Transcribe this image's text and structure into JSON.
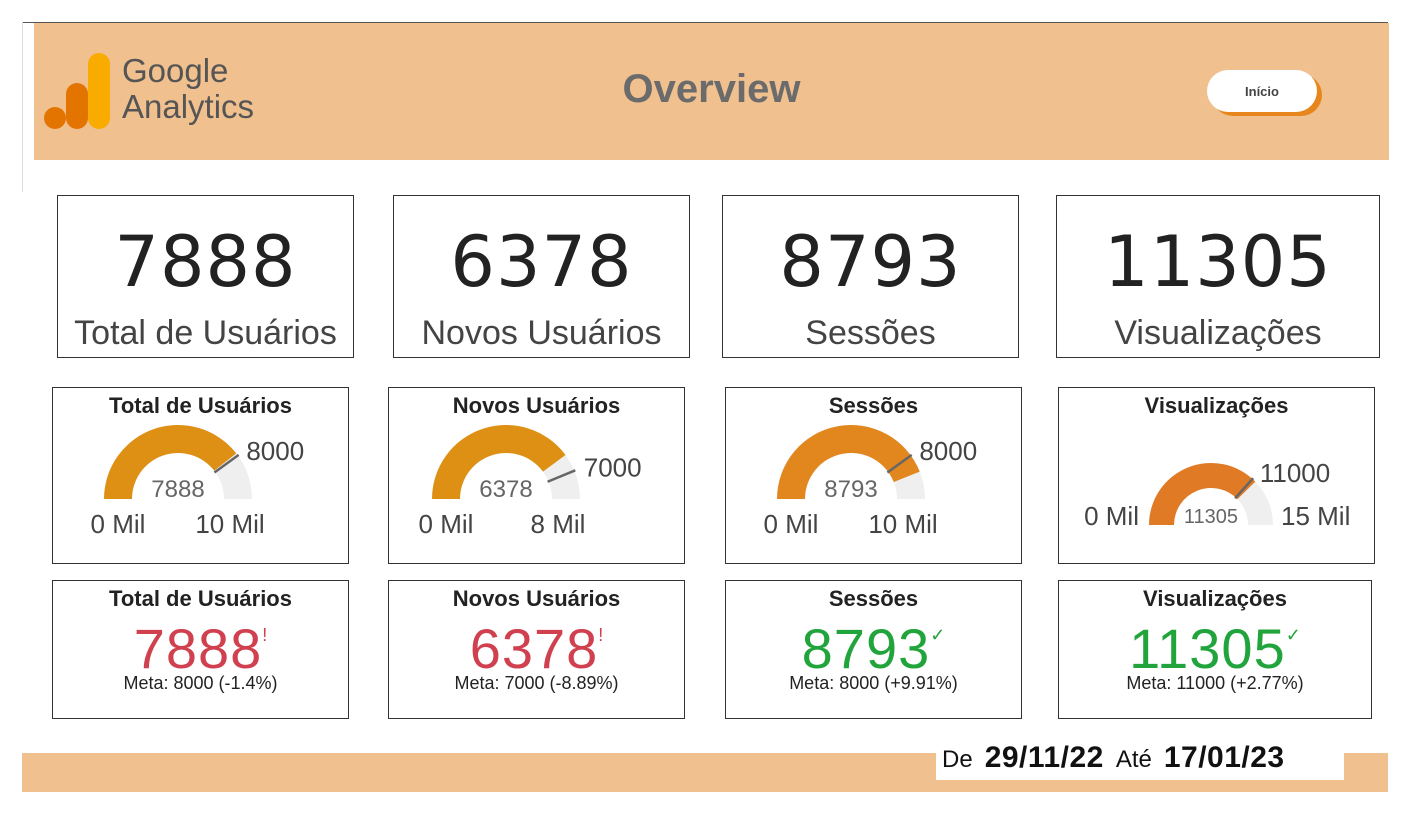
{
  "header": {
    "logo_line1": "Google",
    "logo_line2": "Analytics",
    "title": "Overview",
    "inicio_label": "Início",
    "bg_color": "#f0c08f",
    "accent_color": "#e8861e"
  },
  "kpis": [
    {
      "value": "7888",
      "label": "Total de Usuários"
    },
    {
      "value": "6378",
      "label": "Novos Usuários"
    },
    {
      "value": "8793",
      "label": "Sessões"
    },
    {
      "value": "11305",
      "label": "Visualizações"
    }
  ],
  "gauges": [
    {
      "title": "Total de Usuários",
      "value": 7888,
      "value_label": "7888",
      "min": 0,
      "max": 10000,
      "target": 8000,
      "min_label": "0 Mil",
      "max_label": "10 Mil",
      "target_label": "8000",
      "color": "#de9015"
    },
    {
      "title": "Novos Usuários",
      "value": 6378,
      "value_label": "6378",
      "min": 0,
      "max": 8000,
      "target": 7000,
      "min_label": "0 Mil",
      "max_label": "8 Mil",
      "target_label": "7000",
      "color": "#de9015"
    },
    {
      "title": "Sessões",
      "value": 8793,
      "value_label": "8793",
      "min": 0,
      "max": 10000,
      "target": 8000,
      "min_label": "0 Mil",
      "max_label": "10 Mil",
      "target_label": "8000",
      "color": "#e2861e"
    },
    {
      "title": "Visualizações",
      "value": 11305,
      "value_label": "11305",
      "min": 0,
      "max": 15000,
      "target": 11000,
      "min_label": "0 Mil",
      "max_label": "15 Mil",
      "target_label": "11000",
      "color": "#e07a24"
    }
  ],
  "metas": [
    {
      "title": "Total de Usuários",
      "value": "7888",
      "mark": "!",
      "meta_text": "Meta: 8000 (-1.4%)",
      "color": "#d0404f"
    },
    {
      "title": "Novos Usuários",
      "value": "6378",
      "mark": "!",
      "meta_text": "Meta: 7000 (-8.89%)",
      "color": "#d0404f"
    },
    {
      "title": "Sessões",
      "value": "8793",
      "mark": "✓",
      "meta_text": "Meta: 8000 (+9.91%)",
      "color": "#21a43b"
    },
    {
      "title": "Visualizações",
      "value": "11305",
      "mark": "✓",
      "meta_text": "Meta: 11000 (+2.77%)",
      "color": "#21a43b"
    }
  ],
  "date_range": {
    "from_label": "De",
    "from_value": "29/11/22",
    "to_label": "Até",
    "to_value": "17/01/23"
  }
}
